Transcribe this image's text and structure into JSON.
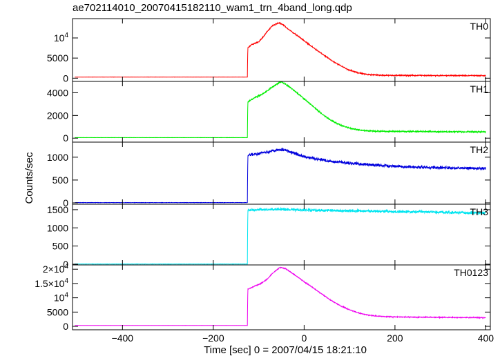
{
  "title": "ae702114010_20070415182110_wam1_trn_4band_long.qdp",
  "chart_data": {
    "type": "line",
    "title": "ae702114010_20070415182110_wam1_trn_4band_long.qdp",
    "xlabel": "Time [sec] 0 = 2007/04/15 18:21:10",
    "ylabel": "Counts/sec",
    "xlim": [
      -510,
      410
    ],
    "x_ticks": [
      {
        "value": -400,
        "label": "−400"
      },
      {
        "value": -200,
        "label": "−200"
      },
      {
        "value": 0,
        "label": "0"
      },
      {
        "value": 200,
        "label": "200"
      },
      {
        "value": 400,
        "label": "400"
      }
    ],
    "grid": false,
    "panels": [
      {
        "name": "TH0",
        "color": "#ff0000",
        "ylim": [
          -800,
          14800
        ],
        "ticks": [
          {
            "value": 0,
            "label": "0"
          },
          {
            "value": 5000,
            "label": "5000"
          },
          {
            "value": 10000,
            "label": "10^4"
          }
        ],
        "series": {
          "x": [
            -505,
            -125,
            -124,
            -115,
            -100,
            -90,
            -80,
            -70,
            -60,
            -55,
            -50,
            -45,
            -40,
            -30,
            -20,
            -10,
            0,
            20,
            40,
            60,
            80,
            100,
            120,
            140,
            160,
            180,
            200,
            250,
            300,
            350,
            400
          ],
          "y": [
            280,
            280,
            7500,
            8400,
            9000,
            10300,
            11800,
            13000,
            13600,
            13700,
            13500,
            13200,
            12600,
            11800,
            11000,
            10200,
            9300,
            7600,
            6000,
            4400,
            3100,
            2000,
            1300,
            920,
            780,
            720,
            700,
            680,
            660,
            650,
            640
          ],
          "noise": 160
        }
      },
      {
        "name": "TH1",
        "color": "#00ee00",
        "ylim": [
          -350,
          5000
        ],
        "ticks": [
          {
            "value": 0,
            "label": "0"
          },
          {
            "value": 2000,
            "label": "2000"
          },
          {
            "value": 4000,
            "label": "4000"
          }
        ],
        "series": {
          "x": [
            -505,
            -125,
            -124,
            -110,
            -95,
            -80,
            -65,
            -55,
            -50,
            -45,
            -35,
            -25,
            -10,
            0,
            20,
            40,
            60,
            80,
            100,
            120,
            140,
            160,
            180,
            200,
            250,
            300,
            350,
            400
          ],
          "y": [
            50,
            50,
            3200,
            3550,
            3800,
            4200,
            4650,
            4900,
            4950,
            4850,
            4600,
            4300,
            3800,
            3450,
            2800,
            2100,
            1550,
            1150,
            880,
            720,
            650,
            610,
            600,
            590,
            580,
            570,
            560,
            550
          ],
          "noise": 70
        }
      },
      {
        "name": "TH2",
        "color": "#0000dd",
        "ylim": [
          -30,
          1330
        ],
        "ticks": [
          {
            "value": 0,
            "label": "0"
          },
          {
            "value": 500,
            "label": "500"
          },
          {
            "value": 1000,
            "label": "1000"
          }
        ],
        "series": {
          "x": [
            -505,
            -125,
            -124,
            -100,
            -80,
            -60,
            -50,
            -40,
            -20,
            0,
            50,
            100,
            150,
            200,
            250,
            300,
            350,
            400
          ],
          "y": [
            5,
            5,
            1040,
            1080,
            1120,
            1160,
            1170,
            1150,
            1080,
            1010,
            920,
            870,
            830,
            800,
            780,
            770,
            760,
            750
          ],
          "noise": 40
        }
      },
      {
        "name": "TH3",
        "color": "#00e5f0",
        "ylim": [
          -20,
          1650
        ],
        "ticks": [
          {
            "value": 0,
            "label": "0"
          },
          {
            "value": 500,
            "label": "500"
          },
          {
            "value": 1000,
            "label": "1000"
          },
          {
            "value": 1500,
            "label": "1500"
          }
        ],
        "series": {
          "x": [
            -505,
            -125,
            -124,
            -100,
            -60,
            -20,
            0,
            100,
            200,
            300,
            400
          ],
          "y": [
            5,
            5,
            1480,
            1500,
            1510,
            1500,
            1490,
            1470,
            1450,
            1430,
            1410
          ],
          "noise": 45
        }
      },
      {
        "name": "TH0123",
        "color": "#ee00ee",
        "ylim": [
          -1200,
          21500
        ],
        "ticks": [
          {
            "value": 0,
            "label": "0"
          },
          {
            "value": 5000,
            "label": "5000"
          },
          {
            "value": 10000,
            "label": "10^4"
          },
          {
            "value": 15000,
            "label": "1.5×10^4"
          },
          {
            "value": 20000,
            "label": "2×10^4"
          }
        ],
        "series": {
          "x": [
            -505,
            -125,
            -124,
            -110,
            -95,
            -80,
            -70,
            -60,
            -55,
            -50,
            -45,
            -40,
            -30,
            -20,
            -10,
            0,
            20,
            40,
            60,
            80,
            100,
            120,
            140,
            160,
            180,
            200,
            250,
            300,
            350,
            400
          ],
          "y": [
            300,
            300,
            13000,
            14000,
            15000,
            16700,
            18500,
            19800,
            20500,
            20600,
            20400,
            20100,
            19000,
            17900,
            16800,
            15600,
            13500,
            11200,
            9000,
            7200,
            5800,
            4700,
            4000,
            3600,
            3400,
            3300,
            3200,
            3150,
            3100,
            3050
          ],
          "noise": 180
        }
      }
    ]
  }
}
